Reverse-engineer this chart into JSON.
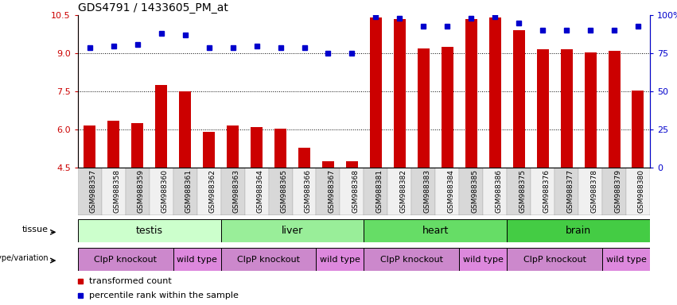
{
  "title": "GDS4791 / 1433605_PM_at",
  "samples": [
    "GSM988357",
    "GSM988358",
    "GSM988359",
    "GSM988360",
    "GSM988361",
    "GSM988362",
    "GSM988363",
    "GSM988364",
    "GSM988365",
    "GSM988366",
    "GSM988367",
    "GSM988368",
    "GSM988381",
    "GSM988382",
    "GSM988383",
    "GSM988384",
    "GSM988385",
    "GSM988386",
    "GSM988375",
    "GSM988376",
    "GSM988377",
    "GSM988378",
    "GSM988379",
    "GSM988380"
  ],
  "transformed_count": [
    6.15,
    6.35,
    6.25,
    7.75,
    7.5,
    5.9,
    6.15,
    6.1,
    6.05,
    5.3,
    4.75,
    4.75,
    10.4,
    10.35,
    9.2,
    9.25,
    10.35,
    10.4,
    9.9,
    9.15,
    9.15,
    9.05,
    9.1,
    7.55
  ],
  "percentile_rank": [
    79,
    80,
    81,
    88,
    87,
    79,
    79,
    80,
    79,
    79,
    75,
    75,
    99,
    98,
    93,
    93,
    98,
    99,
    95,
    90,
    90,
    90,
    90,
    93
  ],
  "ylim_left": [
    4.5,
    10.5
  ],
  "ylim_right": [
    0,
    100
  ],
  "yticks_left": [
    4.5,
    6.0,
    7.5,
    9.0,
    10.5
  ],
  "yticks_right": [
    0,
    25,
    50,
    75,
    100
  ],
  "ytick_labels_right": [
    "0",
    "25",
    "50",
    "75",
    "100%"
  ],
  "grid_values": [
    6.0,
    7.5,
    9.0
  ],
  "bar_color": "#cc0000",
  "dot_color": "#0000cc",
  "tissue_groups": [
    {
      "label": "testis",
      "start": 0,
      "end": 5,
      "color": "#ccffcc"
    },
    {
      "label": "liver",
      "start": 6,
      "end": 11,
      "color": "#99ee99"
    },
    {
      "label": "heart",
      "start": 12,
      "end": 17,
      "color": "#66dd66"
    },
    {
      "label": "brain",
      "start": 18,
      "end": 23,
      "color": "#44cc44"
    }
  ],
  "genotype_groups": [
    {
      "label": "ClpP knockout",
      "start": 0,
      "end": 3,
      "color": "#cc88cc"
    },
    {
      "label": "wild type",
      "start": 4,
      "end": 5,
      "color": "#dd88dd"
    },
    {
      "label": "ClpP knockout",
      "start": 6,
      "end": 9,
      "color": "#cc88cc"
    },
    {
      "label": "wild type",
      "start": 10,
      "end": 11,
      "color": "#dd88dd"
    },
    {
      "label": "ClpP knockout",
      "start": 12,
      "end": 15,
      "color": "#cc88cc"
    },
    {
      "label": "wild type",
      "start": 16,
      "end": 17,
      "color": "#dd88dd"
    },
    {
      "label": "ClpP knockout",
      "start": 18,
      "end": 21,
      "color": "#cc88cc"
    },
    {
      "label": "wild type",
      "start": 22,
      "end": 23,
      "color": "#dd88dd"
    }
  ],
  "bar_width": 0.5,
  "figure_bg": "#ffffff",
  "axes_bg": "#ffffff",
  "tick_bg_even": "#d8d8d8",
  "tick_bg_odd": "#f0f0f0",
  "legend_items": [
    {
      "label": "transformed count",
      "color": "#cc0000"
    },
    {
      "label": "percentile rank within the sample",
      "color": "#0000cc"
    }
  ]
}
